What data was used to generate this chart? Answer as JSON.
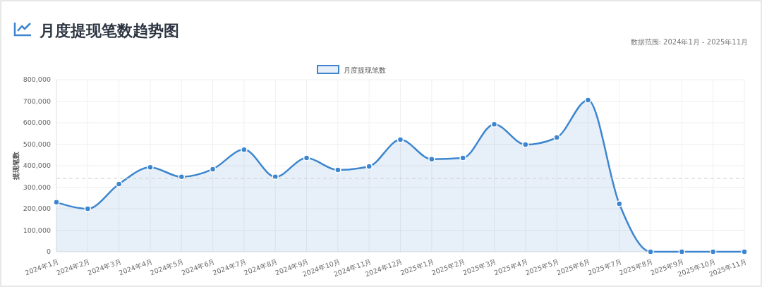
{
  "chart_data": {
    "type": "area",
    "title": "月度提现笔数趋势图",
    "subtitle": "数据范围: 2024年1月 - 2025年11月",
    "ylabel": "提现笔数",
    "categories": [
      "2024年1月",
      "2024年2月",
      "2024年3月",
      "2024年4月",
      "2024年5月",
      "2024年6月",
      "2024年7月",
      "2024年8月",
      "2024年9月",
      "2024年10月",
      "2024年11月",
      "2024年12月",
      "2025年1月",
      "2025年2月",
      "2025年3月",
      "2025年4月",
      "2025年5月",
      "2025年6月",
      "2025年7月",
      "2025年8月",
      "2025年9月",
      "2025年10月",
      "2025年11月"
    ],
    "series": [
      {
        "name": "月度提现笔数",
        "color": "#3d86cf",
        "values": [
          230000,
          200000,
          315000,
          393000,
          348000,
          384000,
          475000,
          348000,
          436000,
          380000,
          397000,
          521000,
          430000,
          436000,
          593000,
          498000,
          531000,
          705000,
          223000,
          0,
          0,
          0,
          0
        ]
      }
    ],
    "ylim": [
      0,
      800000
    ],
    "yticks": [
      {
        "value": 0,
        "label": "0"
      },
      {
        "value": 100000,
        "label": "100,000"
      },
      {
        "value": 200000,
        "label": "200,000"
      },
      {
        "value": 300000,
        "label": "300,000"
      },
      {
        "value": 400000,
        "label": "400,000"
      },
      {
        "value": 500000,
        "label": "500,000"
      },
      {
        "value": 600000,
        "label": "600,000"
      },
      {
        "value": 700000,
        "label": "700,000"
      },
      {
        "value": 800000,
        "label": "800,000"
      }
    ],
    "ref_lines": [
      {
        "axis": "y",
        "value": 341000,
        "color": "#cccccc",
        "line_style": "dashed"
      }
    ],
    "grid": true,
    "legend": "top",
    "marker": "circle",
    "line_style": "solid"
  }
}
